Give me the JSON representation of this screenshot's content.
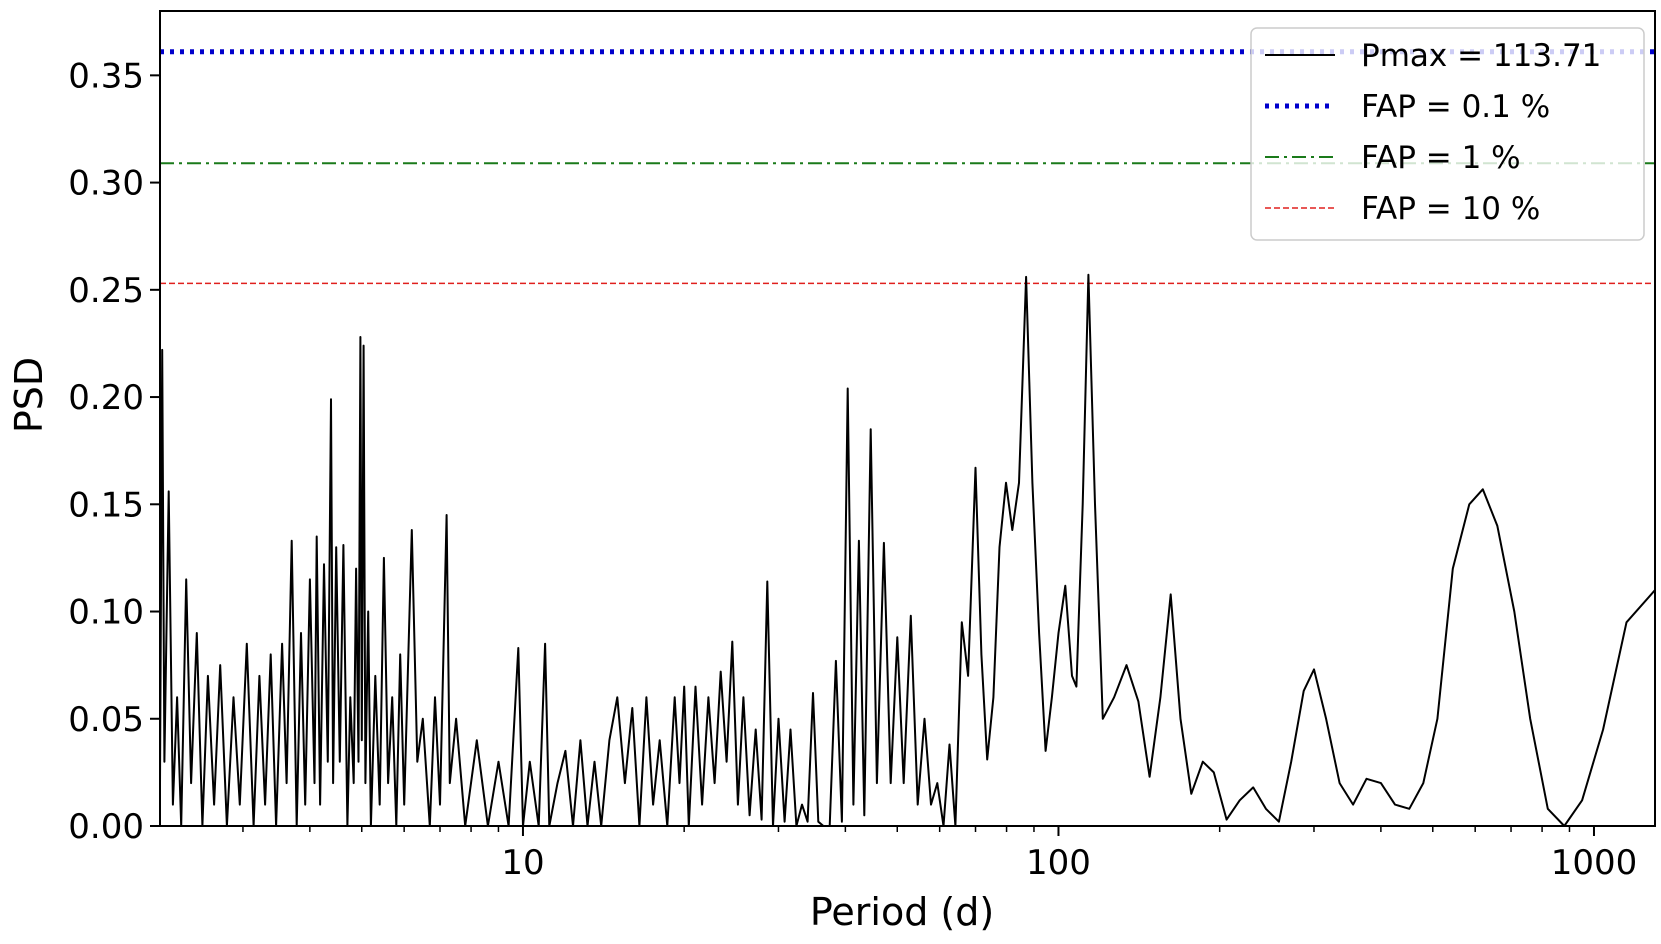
{
  "chart_data": {
    "type": "line",
    "xlabel": "Period (d)",
    "ylabel": "PSD",
    "x_scale": "log",
    "xlim": [
      2.1,
      1300
    ],
    "ylim": [
      0,
      0.38
    ],
    "x_ticks": [
      {
        "value": 10,
        "label": "10"
      },
      {
        "value": 100,
        "label": "100"
      },
      {
        "value": 1000,
        "label": "1000"
      }
    ],
    "y_ticks": [
      {
        "value": 0.0,
        "label": "0.00"
      },
      {
        "value": 0.05,
        "label": "0.05"
      },
      {
        "value": 0.1,
        "label": "0.10"
      },
      {
        "value": 0.15,
        "label": "0.15"
      },
      {
        "value": 0.2,
        "label": "0.20"
      },
      {
        "value": 0.25,
        "label": "0.25"
      },
      {
        "value": 0.3,
        "label": "0.30"
      },
      {
        "value": 0.35,
        "label": "0.35"
      }
    ],
    "grid": false,
    "legend_position": "top-right",
    "thresholds": [
      {
        "name": "FAP = 0.1 %",
        "value": 0.361,
        "color": "#0000cc",
        "style": "dotted"
      },
      {
        "name": "FAP = 1 %",
        "value": 0.309,
        "color": "#1a7a1a",
        "style": "dashdot"
      },
      {
        "name": "FAP = 10 %",
        "value": 0.253,
        "color": "#e0201e",
        "style": "dashed"
      }
    ],
    "series": [
      {
        "name": "Pmax = 113.71",
        "color": "#000000",
        "points": [
          [
            2.1,
            0.02
          ],
          [
            2.12,
            0.222
          ],
          [
            2.14,
            0.03
          ],
          [
            2.18,
            0.156
          ],
          [
            2.22,
            0.01
          ],
          [
            2.26,
            0.06
          ],
          [
            2.3,
            0.0
          ],
          [
            2.35,
            0.115
          ],
          [
            2.4,
            0.02
          ],
          [
            2.46,
            0.09
          ],
          [
            2.52,
            0.0
          ],
          [
            2.58,
            0.07
          ],
          [
            2.65,
            0.01
          ],
          [
            2.72,
            0.075
          ],
          [
            2.8,
            0.0
          ],
          [
            2.88,
            0.06
          ],
          [
            2.96,
            0.01
          ],
          [
            3.05,
            0.085
          ],
          [
            3.14,
            0.0
          ],
          [
            3.22,
            0.07
          ],
          [
            3.3,
            0.01
          ],
          [
            3.38,
            0.08
          ],
          [
            3.46,
            0.0
          ],
          [
            3.55,
            0.085
          ],
          [
            3.62,
            0.02
          ],
          [
            3.7,
            0.133
          ],
          [
            3.78,
            0.0
          ],
          [
            3.85,
            0.09
          ],
          [
            3.92,
            0.01
          ],
          [
            4.0,
            0.115
          ],
          [
            4.08,
            0.02
          ],
          [
            4.12,
            0.135
          ],
          [
            4.18,
            0.01
          ],
          [
            4.25,
            0.122
          ],
          [
            4.32,
            0.03
          ],
          [
            4.38,
            0.199
          ],
          [
            4.42,
            0.02
          ],
          [
            4.48,
            0.13
          ],
          [
            4.55,
            0.03
          ],
          [
            4.62,
            0.131
          ],
          [
            4.7,
            0.0
          ],
          [
            4.76,
            0.06
          ],
          [
            4.83,
            0.02
          ],
          [
            4.88,
            0.12
          ],
          [
            4.93,
            0.03
          ],
          [
            4.97,
            0.228
          ],
          [
            5.0,
            0.04
          ],
          [
            5.04,
            0.224
          ],
          [
            5.08,
            0.02
          ],
          [
            5.14,
            0.1
          ],
          [
            5.2,
            0.0
          ],
          [
            5.3,
            0.07
          ],
          [
            5.4,
            0.01
          ],
          [
            5.5,
            0.125
          ],
          [
            5.6,
            0.02
          ],
          [
            5.7,
            0.06
          ],
          [
            5.8,
            0.0
          ],
          [
            5.9,
            0.08
          ],
          [
            6.0,
            0.01
          ],
          [
            6.2,
            0.138
          ],
          [
            6.35,
            0.03
          ],
          [
            6.5,
            0.05
          ],
          [
            6.7,
            0.0
          ],
          [
            6.85,
            0.06
          ],
          [
            7.0,
            0.01
          ],
          [
            7.2,
            0.145
          ],
          [
            7.3,
            0.02
          ],
          [
            7.5,
            0.05
          ],
          [
            7.8,
            0.0
          ],
          [
            8.2,
            0.04
          ],
          [
            8.6,
            0.0
          ],
          [
            9.0,
            0.03
          ],
          [
            9.4,
            0.0
          ],
          [
            9.8,
            0.083
          ],
          [
            10.0,
            0.0
          ],
          [
            10.3,
            0.03
          ],
          [
            10.7,
            0.0
          ],
          [
            11.0,
            0.085
          ],
          [
            11.2,
            0.0
          ],
          [
            11.6,
            0.02
          ],
          [
            12.0,
            0.035
          ],
          [
            12.4,
            0.0
          ],
          [
            12.8,
            0.04
          ],
          [
            13.2,
            0.0
          ],
          [
            13.6,
            0.03
          ],
          [
            14.0,
            0.0
          ],
          [
            14.5,
            0.04
          ],
          [
            15.0,
            0.06
          ],
          [
            15.5,
            0.02
          ],
          [
            16.0,
            0.055
          ],
          [
            16.5,
            0.0
          ],
          [
            17.0,
            0.06
          ],
          [
            17.5,
            0.01
          ],
          [
            18.0,
            0.04
          ],
          [
            18.6,
            0.0
          ],
          [
            19.2,
            0.06
          ],
          [
            19.6,
            0.02
          ],
          [
            20.0,
            0.065
          ],
          [
            20.4,
            0.0
          ],
          [
            21.0,
            0.065
          ],
          [
            21.6,
            0.01
          ],
          [
            22.2,
            0.06
          ],
          [
            22.8,
            0.02
          ],
          [
            23.4,
            0.072
          ],
          [
            24.0,
            0.03
          ],
          [
            24.6,
            0.086
          ],
          [
            25.2,
            0.01
          ],
          [
            25.8,
            0.06
          ],
          [
            26.5,
            0.005
          ],
          [
            27.2,
            0.045
          ],
          [
            27.9,
            0.003
          ],
          [
            28.6,
            0.114
          ],
          [
            29.3,
            0.0
          ],
          [
            30.0,
            0.05
          ],
          [
            30.8,
            0.002
          ],
          [
            31.6,
            0.045
          ],
          [
            32.4,
            0.0
          ],
          [
            33.2,
            0.01
          ],
          [
            34.0,
            0.002
          ],
          [
            34.8,
            0.062
          ],
          [
            35.6,
            0.002
          ],
          [
            36.4,
            0.0
          ],
          [
            37.4,
            0.0
          ],
          [
            38.4,
            0.077
          ],
          [
            39.4,
            0.002
          ],
          [
            40.4,
            0.204
          ],
          [
            41.4,
            0.01
          ],
          [
            42.4,
            0.133
          ],
          [
            43.4,
            0.005
          ],
          [
            44.6,
            0.185
          ],
          [
            45.8,
            0.02
          ],
          [
            47.2,
            0.132
          ],
          [
            48.6,
            0.02
          ],
          [
            50.0,
            0.088
          ],
          [
            51.4,
            0.02
          ],
          [
            53.0,
            0.098
          ],
          [
            54.6,
            0.01
          ],
          [
            56.2,
            0.05
          ],
          [
            57.8,
            0.01
          ],
          [
            59.4,
            0.02
          ],
          [
            61.0,
            0.0
          ],
          [
            62.6,
            0.038
          ],
          [
            64.2,
            0.0
          ],
          [
            66.0,
            0.095
          ],
          [
            67.8,
            0.07
          ],
          [
            70.0,
            0.167
          ],
          [
            71.8,
            0.08
          ],
          [
            73.6,
            0.031
          ],
          [
            75.6,
            0.06
          ],
          [
            77.6,
            0.13
          ],
          [
            79.8,
            0.16
          ],
          [
            82.0,
            0.138
          ],
          [
            84.4,
            0.16
          ],
          [
            87.0,
            0.256
          ],
          [
            89.4,
            0.16
          ],
          [
            92.0,
            0.09
          ],
          [
            94.6,
            0.035
          ],
          [
            97.2,
            0.06
          ],
          [
            100.0,
            0.09
          ],
          [
            103.0,
            0.112
          ],
          [
            106.0,
            0.07
          ],
          [
            108.0,
            0.065
          ],
          [
            111.0,
            0.15
          ],
          [
            113.71,
            0.257
          ],
          [
            117.0,
            0.15
          ],
          [
            121.0,
            0.05
          ],
          [
            127.0,
            0.06
          ],
          [
            134.0,
            0.075
          ],
          [
            141.0,
            0.058
          ],
          [
            148.0,
            0.023
          ],
          [
            155.0,
            0.06
          ],
          [
            162.0,
            0.108
          ],
          [
            169.0,
            0.05
          ],
          [
            177.0,
            0.015
          ],
          [
            186.0,
            0.03
          ],
          [
            195.0,
            0.025
          ],
          [
            206.0,
            0.003
          ],
          [
            218.0,
            0.012
          ],
          [
            231.0,
            0.018
          ],
          [
            244.0,
            0.008
          ],
          [
            258.0,
            0.002
          ],
          [
            272.0,
            0.03
          ],
          [
            287.0,
            0.063
          ],
          [
            300.0,
            0.073
          ],
          [
            316.0,
            0.05
          ],
          [
            335.0,
            0.02
          ],
          [
            355.0,
            0.01
          ],
          [
            376.0,
            0.022
          ],
          [
            400.0,
            0.02
          ],
          [
            425.0,
            0.01
          ],
          [
            452.0,
            0.008
          ],
          [
            480.0,
            0.02
          ],
          [
            510.0,
            0.05
          ],
          [
            545.0,
            0.12
          ],
          [
            585.0,
            0.15
          ],
          [
            620.0,
            0.157
          ],
          [
            660.0,
            0.14
          ],
          [
            710.0,
            0.1
          ],
          [
            760.0,
            0.05
          ],
          [
            820.0,
            0.008
          ],
          [
            880.0,
            0.0
          ],
          [
            950.0,
            0.012
          ],
          [
            1040.0,
            0.045
          ],
          [
            1150.0,
            0.095
          ],
          [
            1300.0,
            0.11
          ]
        ]
      }
    ]
  }
}
